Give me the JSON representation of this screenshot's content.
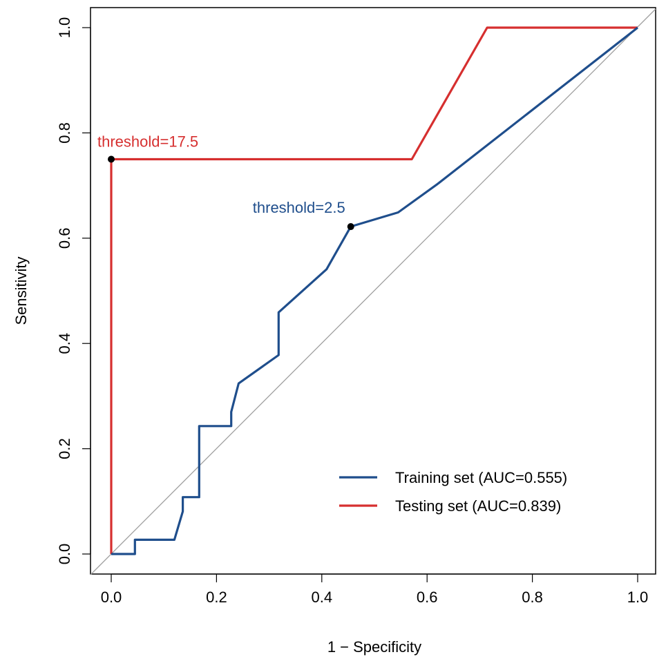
{
  "chart_data": {
    "type": "line",
    "title": "",
    "xlabel": "1 − Specificity",
    "ylabel": "Sensitivity",
    "xlim": [
      0,
      1
    ],
    "ylim": [
      0,
      1
    ],
    "x_ticks": [
      "0.0",
      "0.2",
      "0.4",
      "0.6",
      "0.8",
      "1.0"
    ],
    "y_ticks": [
      "0.0",
      "0.2",
      "0.4",
      "0.6",
      "0.8",
      "1.0"
    ],
    "grid": false,
    "legend_position": "bottom-right",
    "diagonal_reference": true,
    "series": [
      {
        "name": "Training set (AUC=0.555)",
        "color": "#1f4e8c",
        "points": [
          [
            0.0,
            0.0
          ],
          [
            0.045,
            0.0
          ],
          [
            0.045,
            0.027
          ],
          [
            0.12,
            0.027
          ],
          [
            0.136,
            0.081
          ],
          [
            0.136,
            0.108
          ],
          [
            0.167,
            0.108
          ],
          [
            0.167,
            0.243
          ],
          [
            0.228,
            0.243
          ],
          [
            0.228,
            0.27
          ],
          [
            0.242,
            0.324
          ],
          [
            0.318,
            0.378
          ],
          [
            0.318,
            0.459
          ],
          [
            0.409,
            0.541
          ],
          [
            0.455,
            0.622
          ],
          [
            0.545,
            0.649
          ],
          [
            0.62,
            0.703
          ],
          [
            1.0,
            1.0
          ]
        ],
        "threshold_point": [
          0.455,
          0.622
        ],
        "threshold_label": "threshold=2.5"
      },
      {
        "name": "Testing set (AUC=0.839)",
        "color": "#d62f2f",
        "points": [
          [
            0.0,
            0.0
          ],
          [
            0.0,
            0.75
          ],
          [
            0.571,
            0.75
          ],
          [
            0.714,
            1.0
          ],
          [
            1.0,
            1.0
          ]
        ],
        "threshold_point": [
          0.0,
          0.75
        ],
        "threshold_label": "threshold=17.5"
      }
    ]
  }
}
